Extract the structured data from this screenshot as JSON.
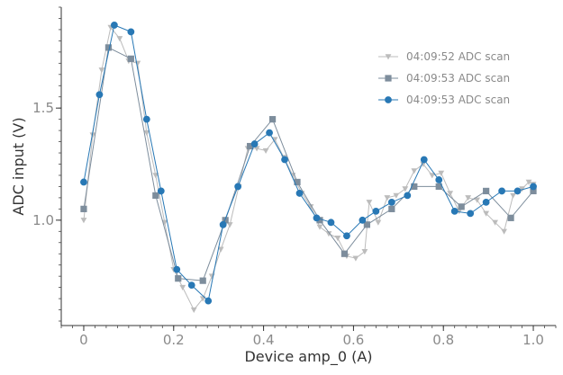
{
  "chart_data": {
    "type": "line",
    "xlabel": "Device amp_0 (A)",
    "ylabel": "ADC input (V)",
    "xlim": [
      -0.05,
      1.05
    ],
    "ylim": [
      0.53,
      1.95
    ],
    "xticks": [
      0,
      0.2,
      0.4,
      0.6,
      0.8,
      1.0
    ],
    "xtick_labels": [
      "0",
      "0.2",
      "0.4",
      "0.6",
      "0.8",
      "1.0"
    ],
    "yticks": [
      1.0,
      1.5
    ],
    "ytick_labels": [
      "1.0",
      "1.5"
    ],
    "grid": false,
    "legend_position": "upper-right",
    "series": [
      {
        "name": "04:09:52 ADC scan",
        "color": "#bcbcbc",
        "marker": "triangle-down",
        "points": [
          [
            0.0,
            1.0
          ],
          [
            0.02,
            1.38
          ],
          [
            0.04,
            1.67
          ],
          [
            0.06,
            1.86
          ],
          [
            0.08,
            1.81
          ],
          [
            0.1,
            1.71
          ],
          [
            0.12,
            1.7
          ],
          [
            0.14,
            1.39
          ],
          [
            0.16,
            1.2
          ],
          [
            0.18,
            0.99
          ],
          [
            0.2,
            0.78
          ],
          [
            0.22,
            0.7
          ],
          [
            0.245,
            0.6
          ],
          [
            0.265,
            0.65
          ],
          [
            0.285,
            0.75
          ],
          [
            0.305,
            0.87
          ],
          [
            0.325,
            0.98
          ],
          [
            0.345,
            1.15
          ],
          [
            0.365,
            1.32
          ],
          [
            0.385,
            1.32
          ],
          [
            0.405,
            1.31
          ],
          [
            0.425,
            1.36
          ],
          [
            0.445,
            1.28
          ],
          [
            0.465,
            1.2
          ],
          [
            0.485,
            1.12
          ],
          [
            0.505,
            1.06
          ],
          [
            0.525,
            0.97
          ],
          [
            0.545,
            0.94
          ],
          [
            0.565,
            0.92
          ],
          [
            0.585,
            0.84
          ],
          [
            0.605,
            0.83
          ],
          [
            0.625,
            0.86
          ],
          [
            0.635,
            1.08
          ],
          [
            0.655,
            0.99
          ],
          [
            0.675,
            1.1
          ],
          [
            0.695,
            1.11
          ],
          [
            0.715,
            1.14
          ],
          [
            0.735,
            1.22
          ],
          [
            0.755,
            1.25
          ],
          [
            0.775,
            1.2
          ],
          [
            0.795,
            1.21
          ],
          [
            0.815,
            1.12
          ],
          [
            0.835,
            1.04
          ],
          [
            0.855,
            1.1
          ],
          [
            0.875,
            1.09
          ],
          [
            0.895,
            1.03
          ],
          [
            0.915,
            0.99
          ],
          [
            0.935,
            0.95
          ],
          [
            0.955,
            1.11
          ],
          [
            0.975,
            1.14
          ],
          [
            0.99,
            1.17
          ],
          [
            1.0,
            1.16
          ]
        ]
      },
      {
        "name": "04:09:53 ADC scan",
        "color": "#7d8d9c",
        "marker": "square",
        "points": [
          [
            0.0,
            1.05
          ],
          [
            0.055,
            1.77
          ],
          [
            0.105,
            1.72
          ],
          [
            0.16,
            1.11
          ],
          [
            0.21,
            0.74
          ],
          [
            0.265,
            0.73
          ],
          [
            0.315,
            1.0
          ],
          [
            0.37,
            1.33
          ],
          [
            0.42,
            1.45
          ],
          [
            0.475,
            1.17
          ],
          [
            0.525,
            1.0
          ],
          [
            0.58,
            0.85
          ],
          [
            0.63,
            0.98
          ],
          [
            0.685,
            1.05
          ],
          [
            0.735,
            1.15
          ],
          [
            0.79,
            1.15
          ],
          [
            0.84,
            1.06
          ],
          [
            0.895,
            1.13
          ],
          [
            0.95,
            1.01
          ],
          [
            1.0,
            1.13
          ]
        ]
      },
      {
        "name": "04:09:53 ADC scan",
        "color": "#2878b5",
        "marker": "circle",
        "points": [
          [
            0.0,
            1.17
          ],
          [
            0.035,
            1.56
          ],
          [
            0.068,
            1.87
          ],
          [
            0.105,
            1.84
          ],
          [
            0.14,
            1.45
          ],
          [
            0.172,
            1.13
          ],
          [
            0.207,
            0.78
          ],
          [
            0.24,
            0.71
          ],
          [
            0.277,
            0.64
          ],
          [
            0.31,
            0.98
          ],
          [
            0.343,
            1.15
          ],
          [
            0.38,
            1.34
          ],
          [
            0.413,
            1.39
          ],
          [
            0.447,
            1.27
          ],
          [
            0.48,
            1.12
          ],
          [
            0.518,
            1.01
          ],
          [
            0.55,
            0.99
          ],
          [
            0.585,
            0.93
          ],
          [
            0.62,
            1.0
          ],
          [
            0.65,
            1.04
          ],
          [
            0.685,
            1.08
          ],
          [
            0.72,
            1.11
          ],
          [
            0.757,
            1.27
          ],
          [
            0.79,
            1.18
          ],
          [
            0.825,
            1.04
          ],
          [
            0.86,
            1.03
          ],
          [
            0.895,
            1.08
          ],
          [
            0.93,
            1.13
          ],
          [
            0.965,
            1.13
          ],
          [
            1.0,
            1.15
          ]
        ]
      }
    ]
  }
}
